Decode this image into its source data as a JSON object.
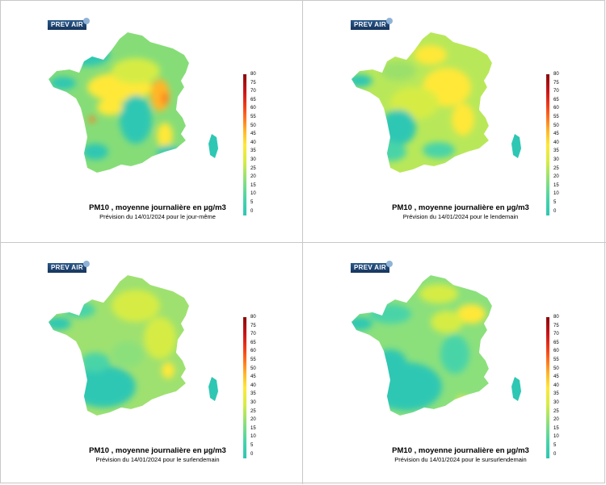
{
  "logo_text": "PREV AIR",
  "scale_ticks": [
    "80",
    "75",
    "70",
    "65",
    "60",
    "55",
    "50",
    "45",
    "40",
    "35",
    "30",
    "25",
    "20",
    "15",
    "10",
    "5",
    "0"
  ],
  "panels": [
    {
      "title": "PM10 , moyenne journalière en µg/m3",
      "subtitle": "Prévision du 14/01/2024 pour le jour-même"
    },
    {
      "title": "PM10 , moyenne journalière en µg/m3",
      "subtitle": "Prévision du 14/01/2024 pour le lendemain"
    },
    {
      "title": "PM10 , moyenne journalière en µg/m3",
      "subtitle": "Prévision du 14/01/2024 pour le surlendemain"
    },
    {
      "title": "PM10 , moyenne journalière en µg/m3",
      "subtitle": "Prévision du 14/01/2024 pour le sursurlendemain"
    }
  ],
  "colors": {
    "low": "#2ec7b3",
    "mid": "#d6ec44",
    "high": "#ffb628",
    "max": "#8a0a0a"
  }
}
